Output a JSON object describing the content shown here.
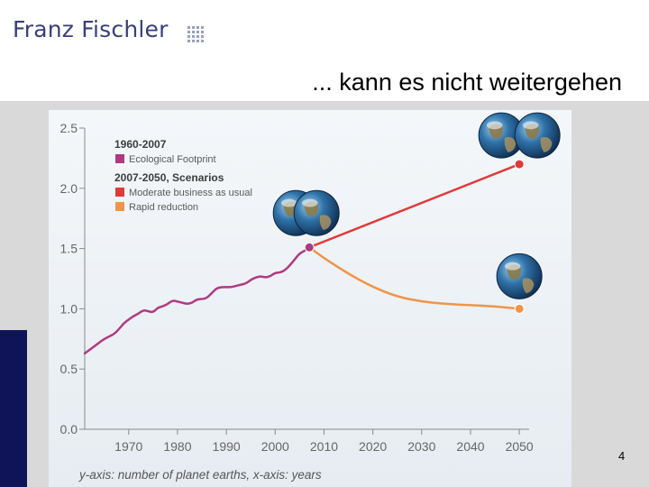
{
  "header": {
    "brand": "Franz Fischler",
    "slide_title": "... kann es nicht weitergehen",
    "page_number": "4"
  },
  "colors": {
    "brand_text": "#3a3f78",
    "accent_bar": "#0f1458",
    "footprint": "#b03a82",
    "moderate": "#e03a3a",
    "rapid": "#ef9548"
  },
  "icons": [
    "franz-fischler-logo-icon",
    "earth-globe-icon"
  ],
  "chart_data": {
    "type": "line",
    "xlabel": "",
    "ylabel": "",
    "caption": "y-axis: number of planet earths, x-axis: years",
    "xlim": [
      1961,
      2052
    ],
    "ylim": [
      0,
      2.5
    ],
    "x_ticks": [
      1970,
      1980,
      1990,
      2000,
      2010,
      2020,
      2030,
      2040,
      2050
    ],
    "y_ticks": [
      "0.0",
      "0.5",
      "1.0",
      "1.5",
      "2.0",
      "2.5"
    ],
    "grid": false,
    "legend": {
      "placement": "top-left",
      "groups": [
        {
          "heading": "1960-2007",
          "items": [
            {
              "label": "Ecological Footprint",
              "color": "#b03a82"
            }
          ]
        },
        {
          "heading": "2007-2050, Scenarios",
          "items": [
            {
              "label": "Moderate business as usual",
              "color": "#e03a3a"
            },
            {
              "label": "Rapid reduction",
              "color": "#ef9548"
            }
          ]
        }
      ]
    },
    "series": [
      {
        "name": "Ecological Footprint",
        "color": "#b03a82",
        "x": [
          1961,
          1962,
          1963,
          1964,
          1965,
          1966,
          1967,
          1968,
          1969,
          1970,
          1971,
          1972,
          1973,
          1974,
          1975,
          1976,
          1977,
          1978,
          1979,
          1980,
          1981,
          1982,
          1983,
          1984,
          1985,
          1986,
          1987,
          1988,
          1989,
          1990,
          1991,
          1992,
          1993,
          1994,
          1995,
          1996,
          1997,
          1998,
          1999,
          2000,
          2001,
          2002,
          2003,
          2004,
          2005,
          2006,
          2007
        ],
        "y": [
          0.63,
          0.66,
          0.69,
          0.72,
          0.75,
          0.77,
          0.79,
          0.83,
          0.88,
          0.91,
          0.94,
          0.96,
          0.99,
          0.98,
          0.97,
          1.01,
          1.02,
          1.04,
          1.07,
          1.06,
          1.05,
          1.04,
          1.05,
          1.08,
          1.08,
          1.09,
          1.13,
          1.17,
          1.18,
          1.18,
          1.18,
          1.19,
          1.2,
          1.21,
          1.24,
          1.26,
          1.27,
          1.26,
          1.27,
          1.3,
          1.3,
          1.32,
          1.36,
          1.41,
          1.46,
          1.48,
          1.51
        ]
      },
      {
        "name": "Moderate business as usual",
        "color": "#e03a3a",
        "x": [
          2007,
          2050
        ],
        "y": [
          1.51,
          2.2
        ]
      },
      {
        "name": "Rapid reduction",
        "color": "#ef9548",
        "x": [
          2007,
          2010,
          2015,
          2020,
          2025,
          2030,
          2035,
          2040,
          2045,
          2050
        ],
        "y": [
          1.51,
          1.42,
          1.29,
          1.18,
          1.1,
          1.06,
          1.04,
          1.03,
          1.02,
          1.0
        ]
      }
    ],
    "globe_groups": [
      {
        "count": 2,
        "near": "2007"
      },
      {
        "count": 2,
        "near": "2050-moderate"
      },
      {
        "count": 1,
        "near": "2050-rapid"
      }
    ]
  }
}
